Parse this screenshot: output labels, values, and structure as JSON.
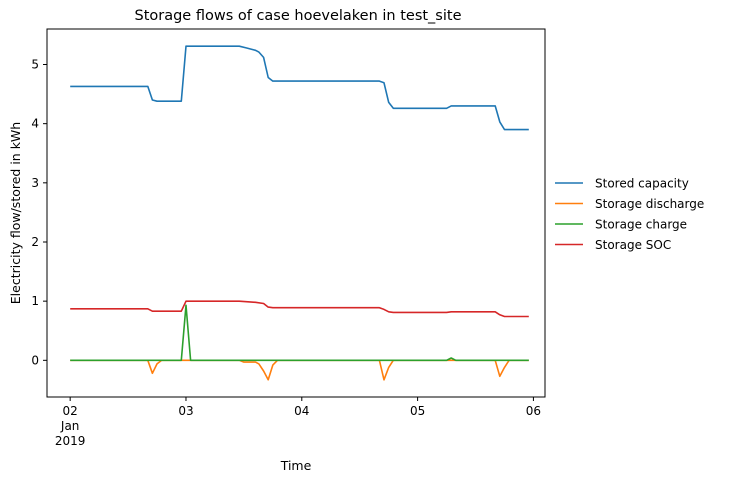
{
  "chart_data": {
    "type": "line",
    "title": "Storage flows of case hoevelaken in test_site",
    "xlabel": "Time",
    "ylabel": "Electricity flow/stored in kWh",
    "xlim": [
      1.8,
      6.1
    ],
    "ylim": [
      -0.62,
      5.6
    ],
    "grid": false,
    "legend": "outside-right",
    "x_ticks": [
      {
        "value": 2,
        "lines": [
          "02",
          "Jan",
          "2019"
        ]
      },
      {
        "value": 3,
        "lines": [
          "03"
        ]
      },
      {
        "value": 4,
        "lines": [
          "04"
        ]
      },
      {
        "value": 5,
        "lines": [
          "05"
        ]
      },
      {
        "value": 6,
        "lines": [
          "06"
        ]
      }
    ],
    "y_ticks": [
      0,
      1,
      2,
      3,
      4,
      5
    ],
    "series": [
      {
        "name": "Stored capacity",
        "color": "#1f77b4",
        "points": [
          [
            2.0,
            4.63
          ],
          [
            2.67,
            4.63
          ],
          [
            2.71,
            4.4
          ],
          [
            2.75,
            4.38
          ],
          [
            2.96,
            4.38
          ],
          [
            3.0,
            5.31
          ],
          [
            3.46,
            5.31
          ],
          [
            3.52,
            5.28
          ],
          [
            3.6,
            5.24
          ],
          [
            3.63,
            5.21
          ],
          [
            3.67,
            5.12
          ],
          [
            3.71,
            4.78
          ],
          [
            3.75,
            4.72
          ],
          [
            4.67,
            4.72
          ],
          [
            4.71,
            4.69
          ],
          [
            4.75,
            4.36
          ],
          [
            4.79,
            4.26
          ],
          [
            5.25,
            4.26
          ],
          [
            5.29,
            4.3
          ],
          [
            5.67,
            4.3
          ],
          [
            5.71,
            4.03
          ],
          [
            5.75,
            3.9
          ],
          [
            5.96,
            3.9
          ]
        ]
      },
      {
        "name": "Storage discharge",
        "color": "#ff7f0e",
        "points": [
          [
            2.0,
            0.0
          ],
          [
            2.67,
            0.0
          ],
          [
            2.71,
            -0.22
          ],
          [
            2.75,
            -0.06
          ],
          [
            2.79,
            0.0
          ],
          [
            3.46,
            0.0
          ],
          [
            3.5,
            -0.03
          ],
          [
            3.6,
            -0.03
          ],
          [
            3.63,
            -0.06
          ],
          [
            3.67,
            -0.18
          ],
          [
            3.71,
            -0.33
          ],
          [
            3.75,
            -0.08
          ],
          [
            3.79,
            0.0
          ],
          [
            4.67,
            0.0
          ],
          [
            4.71,
            -0.33
          ],
          [
            4.75,
            -0.12
          ],
          [
            4.79,
            0.0
          ],
          [
            5.67,
            0.0
          ],
          [
            5.71,
            -0.27
          ],
          [
            5.75,
            -0.12
          ],
          [
            5.79,
            0.0
          ],
          [
            5.96,
            0.0
          ]
        ]
      },
      {
        "name": "Storage charge",
        "color": "#2ca02c",
        "points": [
          [
            2.0,
            0.0
          ],
          [
            2.96,
            0.0
          ],
          [
            3.0,
            0.93
          ],
          [
            3.04,
            0.0
          ],
          [
            5.25,
            0.0
          ],
          [
            5.29,
            0.04
          ],
          [
            5.33,
            0.0
          ],
          [
            5.96,
            0.0
          ]
        ]
      },
      {
        "name": "Storage SOC",
        "color": "#d62728",
        "points": [
          [
            2.0,
            0.87
          ],
          [
            2.67,
            0.87
          ],
          [
            2.71,
            0.83
          ],
          [
            2.96,
            0.83
          ],
          [
            3.0,
            1.0
          ],
          [
            3.46,
            1.0
          ],
          [
            3.6,
            0.98
          ],
          [
            3.67,
            0.96
          ],
          [
            3.71,
            0.9
          ],
          [
            3.75,
            0.89
          ],
          [
            4.67,
            0.89
          ],
          [
            4.71,
            0.86
          ],
          [
            4.75,
            0.82
          ],
          [
            4.79,
            0.81
          ],
          [
            5.25,
            0.81
          ],
          [
            5.29,
            0.82
          ],
          [
            5.67,
            0.82
          ],
          [
            5.71,
            0.77
          ],
          [
            5.75,
            0.74
          ],
          [
            5.96,
            0.74
          ]
        ]
      }
    ]
  }
}
